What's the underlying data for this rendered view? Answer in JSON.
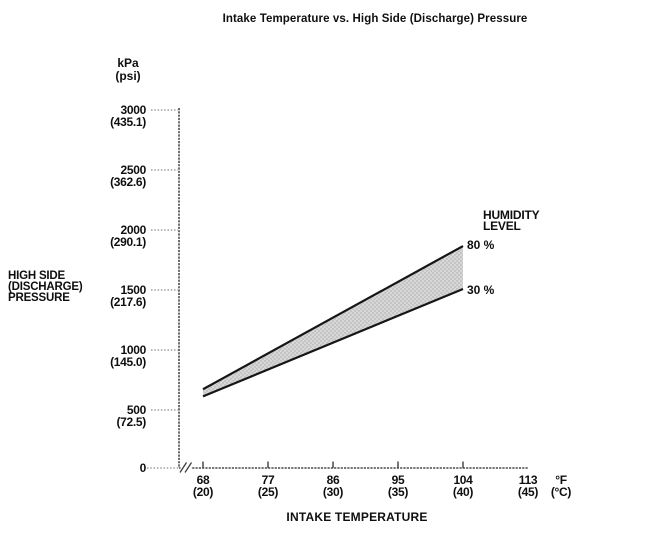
{
  "title": "Intake Temperature vs. High Side (Discharge) Pressure",
  "y_axis": {
    "unit_line1": "kPa",
    "unit_line2": "(psi)",
    "label_line1": "HIGH SIDE",
    "label_line2": "(DISCHARGE)",
    "label_line3": "PRESSURE",
    "ticks": [
      {
        "kpa": "3000",
        "psi": "(435.1)"
      },
      {
        "kpa": "2500",
        "psi": "(362.6)"
      },
      {
        "kpa": "2000",
        "psi": "(290.1)"
      },
      {
        "kpa": "1500",
        "psi": "(217.6)"
      },
      {
        "kpa": "1000",
        "psi": "(145.0)"
      },
      {
        "kpa": "500",
        "psi": "(72.5)"
      },
      {
        "kpa": "0",
        "psi": ""
      }
    ]
  },
  "x_axis": {
    "label": "INTAKE TEMPERATURE",
    "unit_line1": "°F",
    "unit_line2": "(°C)",
    "ticks": [
      {
        "f": "68",
        "c": "(20)"
      },
      {
        "f": "77",
        "c": "(25)"
      },
      {
        "f": "86",
        "c": "(30)"
      },
      {
        "f": "95",
        "c": "(35)"
      },
      {
        "f": "104",
        "c": "(40)"
      },
      {
        "f": "113",
        "c": "(45)"
      }
    ]
  },
  "legend": {
    "title_line1": "HUMIDITY",
    "title_line2": "LEVEL",
    "label_80": "80 %",
    "label_30": "30 %"
  },
  "colors": {
    "background": "#ffffff",
    "text": "#0f0f0f",
    "axis": "#4a4a4a",
    "line": "#161616",
    "band": "#d7d7d7",
    "band_dot": "#aaaaaa"
  },
  "chart_data": {
    "type": "line",
    "title": "Intake Temperature vs. High Side (Discharge) Pressure",
    "xlabel": "INTAKE TEMPERATURE",
    "ylabel": "HIGH SIDE (DISCHARGE) PRESSURE",
    "x_unit": "°F (°C)",
    "y_unit": "kPa (psi)",
    "x_ticks_f": [
      68,
      77,
      86,
      95,
      104,
      113
    ],
    "x_ticks_c": [
      20,
      25,
      30,
      35,
      40,
      45
    ],
    "y_ticks_kpa": [
      0,
      500,
      1000,
      1500,
      2000,
      2500,
      3000
    ],
    "y_ticks_psi": [
      0,
      72.5,
      145.0,
      217.6,
      290.1,
      362.6,
      435.1
    ],
    "xlim": [
      68,
      113
    ],
    "ylim": [
      0,
      3000
    ],
    "grid": false,
    "axis_break_on_x": true,
    "legend_title": "HUMIDITY LEVEL",
    "legend_position": "right-of-line-ends",
    "shaded_band_between_series": true,
    "series": [
      {
        "name": "80 %",
        "x": [
          68,
          104
        ],
        "values": [
          660,
          1860
        ]
      },
      {
        "name": "30 %",
        "x": [
          68,
          104
        ],
        "values": [
          600,
          1500
        ]
      }
    ]
  }
}
